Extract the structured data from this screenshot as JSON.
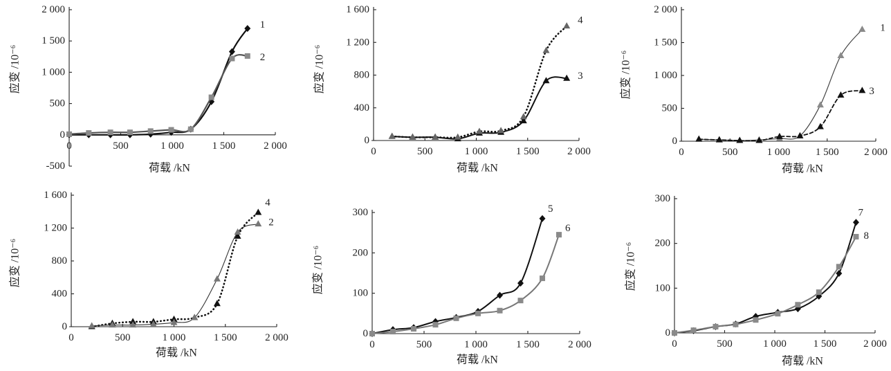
{
  "chart_data": [
    {
      "type": "line",
      "xlabel": "荷载 /kN",
      "ylabel": "应变 /10⁻⁶",
      "xlim": [
        0,
        2000
      ],
      "ylim": [
        -500,
        2000
      ],
      "xticks": [
        0,
        500,
        1000,
        1500,
        2000
      ],
      "xtick_labels": [
        "0",
        "500",
        "1 000",
        "1 500",
        "2 000"
      ],
      "yticks": [
        -500,
        0,
        500,
        1000,
        1500,
        2000
      ],
      "ytick_labels": [
        "-500",
        "0",
        "500",
        "1 000",
        "1 500",
        "2 000"
      ],
      "grid": false,
      "series": [
        {
          "name": "1",
          "marker": "diamond",
          "line_style": "solid",
          "line_color": "#111111",
          "marker_color": "#111111",
          "x": [
            0,
            190,
            400,
            590,
            790,
            990,
            1180,
            1380,
            1580,
            1730
          ],
          "y": [
            0,
            0,
            0,
            0,
            10,
            40,
            90,
            530,
            1330,
            1700
          ]
        },
        {
          "name": "2",
          "marker": "square",
          "line_style": "solid",
          "line_color": "#555555",
          "marker_color": "#8a8a8a",
          "x": [
            0,
            190,
            400,
            590,
            790,
            990,
            1180,
            1380,
            1580,
            1730
          ],
          "y": [
            10,
            30,
            40,
            40,
            60,
            80,
            90,
            600,
            1220,
            1260
          ]
        }
      ]
    },
    {
      "type": "line",
      "xlabel": "荷载 /kN",
      "ylabel": "应变 /10⁻⁶",
      "xlim": [
        0,
        2000
      ],
      "ylim": [
        0,
        1600
      ],
      "xticks": [
        0,
        500,
        1000,
        1500,
        2000
      ],
      "xtick_labels": [
        "0",
        "500",
        "1 000",
        "1 500",
        "2 000"
      ],
      "yticks": [
        0,
        400,
        800,
        1200,
        1600
      ],
      "ytick_labels": [
        "0",
        "400",
        "800",
        "1 200",
        "1 600"
      ],
      "grid": false,
      "series": [
        {
          "name": "3",
          "marker": "triangle",
          "line_style": "solid",
          "line_color": "#111111",
          "marker_color": "#111111",
          "x": [
            180,
            380,
            600,
            820,
            1030,
            1240,
            1460,
            1680,
            1880
          ],
          "y": [
            50,
            40,
            40,
            20,
            90,
            100,
            240,
            730,
            760
          ]
        },
        {
          "name": "4",
          "marker": "triangle",
          "line_style": "dotted",
          "line_color": "#111111",
          "marker_color": "#666666",
          "x": [
            180,
            380,
            600,
            820,
            1030,
            1240,
            1460,
            1680,
            1880
          ],
          "y": [
            50,
            40,
            40,
            40,
            110,
            120,
            290,
            1100,
            1400
          ]
        }
      ]
    },
    {
      "type": "line",
      "xlabel": "荷载 /kN",
      "ylabel": "应变 /10⁻⁶",
      "xlim": [
        0,
        2000
      ],
      "ylim": [
        0,
        2000
      ],
      "xticks": [
        0,
        500,
        1000,
        1500,
        2000
      ],
      "xtick_labels": [
        "0",
        "500",
        "1 000",
        "1 500",
        "2 000"
      ],
      "yticks": [
        0,
        500,
        1000,
        1500,
        2000
      ],
      "ytick_labels": [
        "0",
        "500",
        "1 000",
        "1 500",
        "2 000"
      ],
      "grid": false,
      "series": [
        {
          "name": "1",
          "marker": "triangle",
          "line_style": "solid",
          "line_color": "#444444",
          "marker_color": "#8a8a8a",
          "x": [
            180,
            390,
            600,
            800,
            1010,
            1220,
            1430,
            1640,
            1860
          ],
          "y": [
            30,
            20,
            10,
            20,
            40,
            80,
            550,
            1300,
            1700
          ]
        },
        {
          "name": "3",
          "marker": "triangle",
          "line_style": "dashed",
          "line_color": "#111111",
          "marker_color": "#111111",
          "x": [
            180,
            390,
            600,
            800,
            1010,
            1220,
            1430,
            1640,
            1860
          ],
          "y": [
            30,
            20,
            10,
            10,
            70,
            80,
            220,
            700,
            770
          ]
        }
      ]
    },
    {
      "type": "line",
      "xlabel": "荷载 /kN",
      "ylabel": "应变 /10⁻⁶",
      "xlim": [
        0,
        2000
      ],
      "ylim": [
        0,
        1600
      ],
      "xticks": [
        0,
        500,
        1000,
        1500,
        2000
      ],
      "xtick_labels": [
        "0",
        "500",
        "1 000",
        "1 500",
        "2 000"
      ],
      "yticks": [
        0,
        400,
        800,
        1200,
        1600
      ],
      "ytick_labels": [
        "0",
        "400",
        "800",
        "1 200",
        "1 600"
      ],
      "grid": false,
      "series": [
        {
          "name": "4",
          "marker": "triangle",
          "line_style": "dotted",
          "line_color": "#111111",
          "marker_color": "#111111",
          "x": [
            200,
            400,
            600,
            800,
            1000,
            1200,
            1420,
            1620,
            1820
          ],
          "y": [
            0,
            40,
            60,
            60,
            90,
            110,
            280,
            1100,
            1390
          ]
        },
        {
          "name": "2",
          "marker": "triangle",
          "line_style": "solid",
          "line_color": "#333333",
          "marker_color": "#777777",
          "x": [
            200,
            400,
            600,
            800,
            1000,
            1200,
            1420,
            1620,
            1820
          ],
          "y": [
            10,
            20,
            20,
            30,
            50,
            110,
            580,
            1150,
            1250
          ]
        }
      ]
    },
    {
      "type": "line",
      "xlabel": "荷载 /kN",
      "ylabel": "应变 /10⁻⁶",
      "xlim": [
        0,
        2000
      ],
      "ylim": [
        0,
        300
      ],
      "xticks": [
        0,
        500,
        1000,
        1500,
        2000
      ],
      "xtick_labels": [
        "0",
        "500",
        "1 000",
        "1 500",
        "2 000"
      ],
      "yticks": [
        0,
        100,
        200,
        300
      ],
      "ytick_labels": [
        "0",
        "100",
        "200",
        "300"
      ],
      "grid": false,
      "series": [
        {
          "name": "5",
          "marker": "diamond",
          "line_style": "solid",
          "line_color": "#111111",
          "marker_color": "#111111",
          "x": [
            0,
            200,
            400,
            610,
            810,
            1020,
            1230,
            1430,
            1640
          ],
          "y": [
            0,
            10,
            15,
            30,
            40,
            55,
            95,
            125,
            285
          ]
        },
        {
          "name": "6",
          "marker": "square",
          "line_style": "solid",
          "line_color": "#777777",
          "marker_color": "#8a8a8a",
          "x": [
            0,
            200,
            400,
            610,
            810,
            1020,
            1230,
            1430,
            1640,
            1800
          ],
          "y": [
            0,
            5,
            12,
            22,
            38,
            50,
            57,
            82,
            137,
            245
          ]
        }
      ]
    },
    {
      "type": "line",
      "xlabel": "荷载 /kN",
      "ylabel": "应变 /10⁻⁶",
      "xlim": [
        0,
        2000
      ],
      "ylim": [
        0,
        300
      ],
      "xticks": [
        0,
        500,
        1000,
        1500,
        2000
      ],
      "xtick_labels": [
        "0",
        "500",
        "1 000",
        "1 500",
        "2 000"
      ],
      "yticks": [
        0,
        100,
        200,
        300
      ],
      "ytick_labels": [
        "0",
        "100",
        "200",
        "300"
      ],
      "grid": false,
      "series": [
        {
          "name": "7",
          "marker": "diamond",
          "line_style": "solid",
          "line_color": "#111111",
          "marker_color": "#111111",
          "x": [
            0,
            190,
            410,
            610,
            810,
            1030,
            1230,
            1440,
            1640,
            1810
          ],
          "y": [
            0,
            5,
            14,
            20,
            37,
            46,
            54,
            82,
            133,
            247
          ]
        },
        {
          "name": "8",
          "marker": "square",
          "line_style": "solid",
          "line_color": "#777777",
          "marker_color": "#8a8a8a",
          "x": [
            0,
            190,
            410,
            610,
            810,
            1030,
            1230,
            1440,
            1640,
            1810
          ],
          "y": [
            0,
            6,
            14,
            19,
            29,
            43,
            63,
            91,
            148,
            215
          ]
        }
      ]
    }
  ]
}
